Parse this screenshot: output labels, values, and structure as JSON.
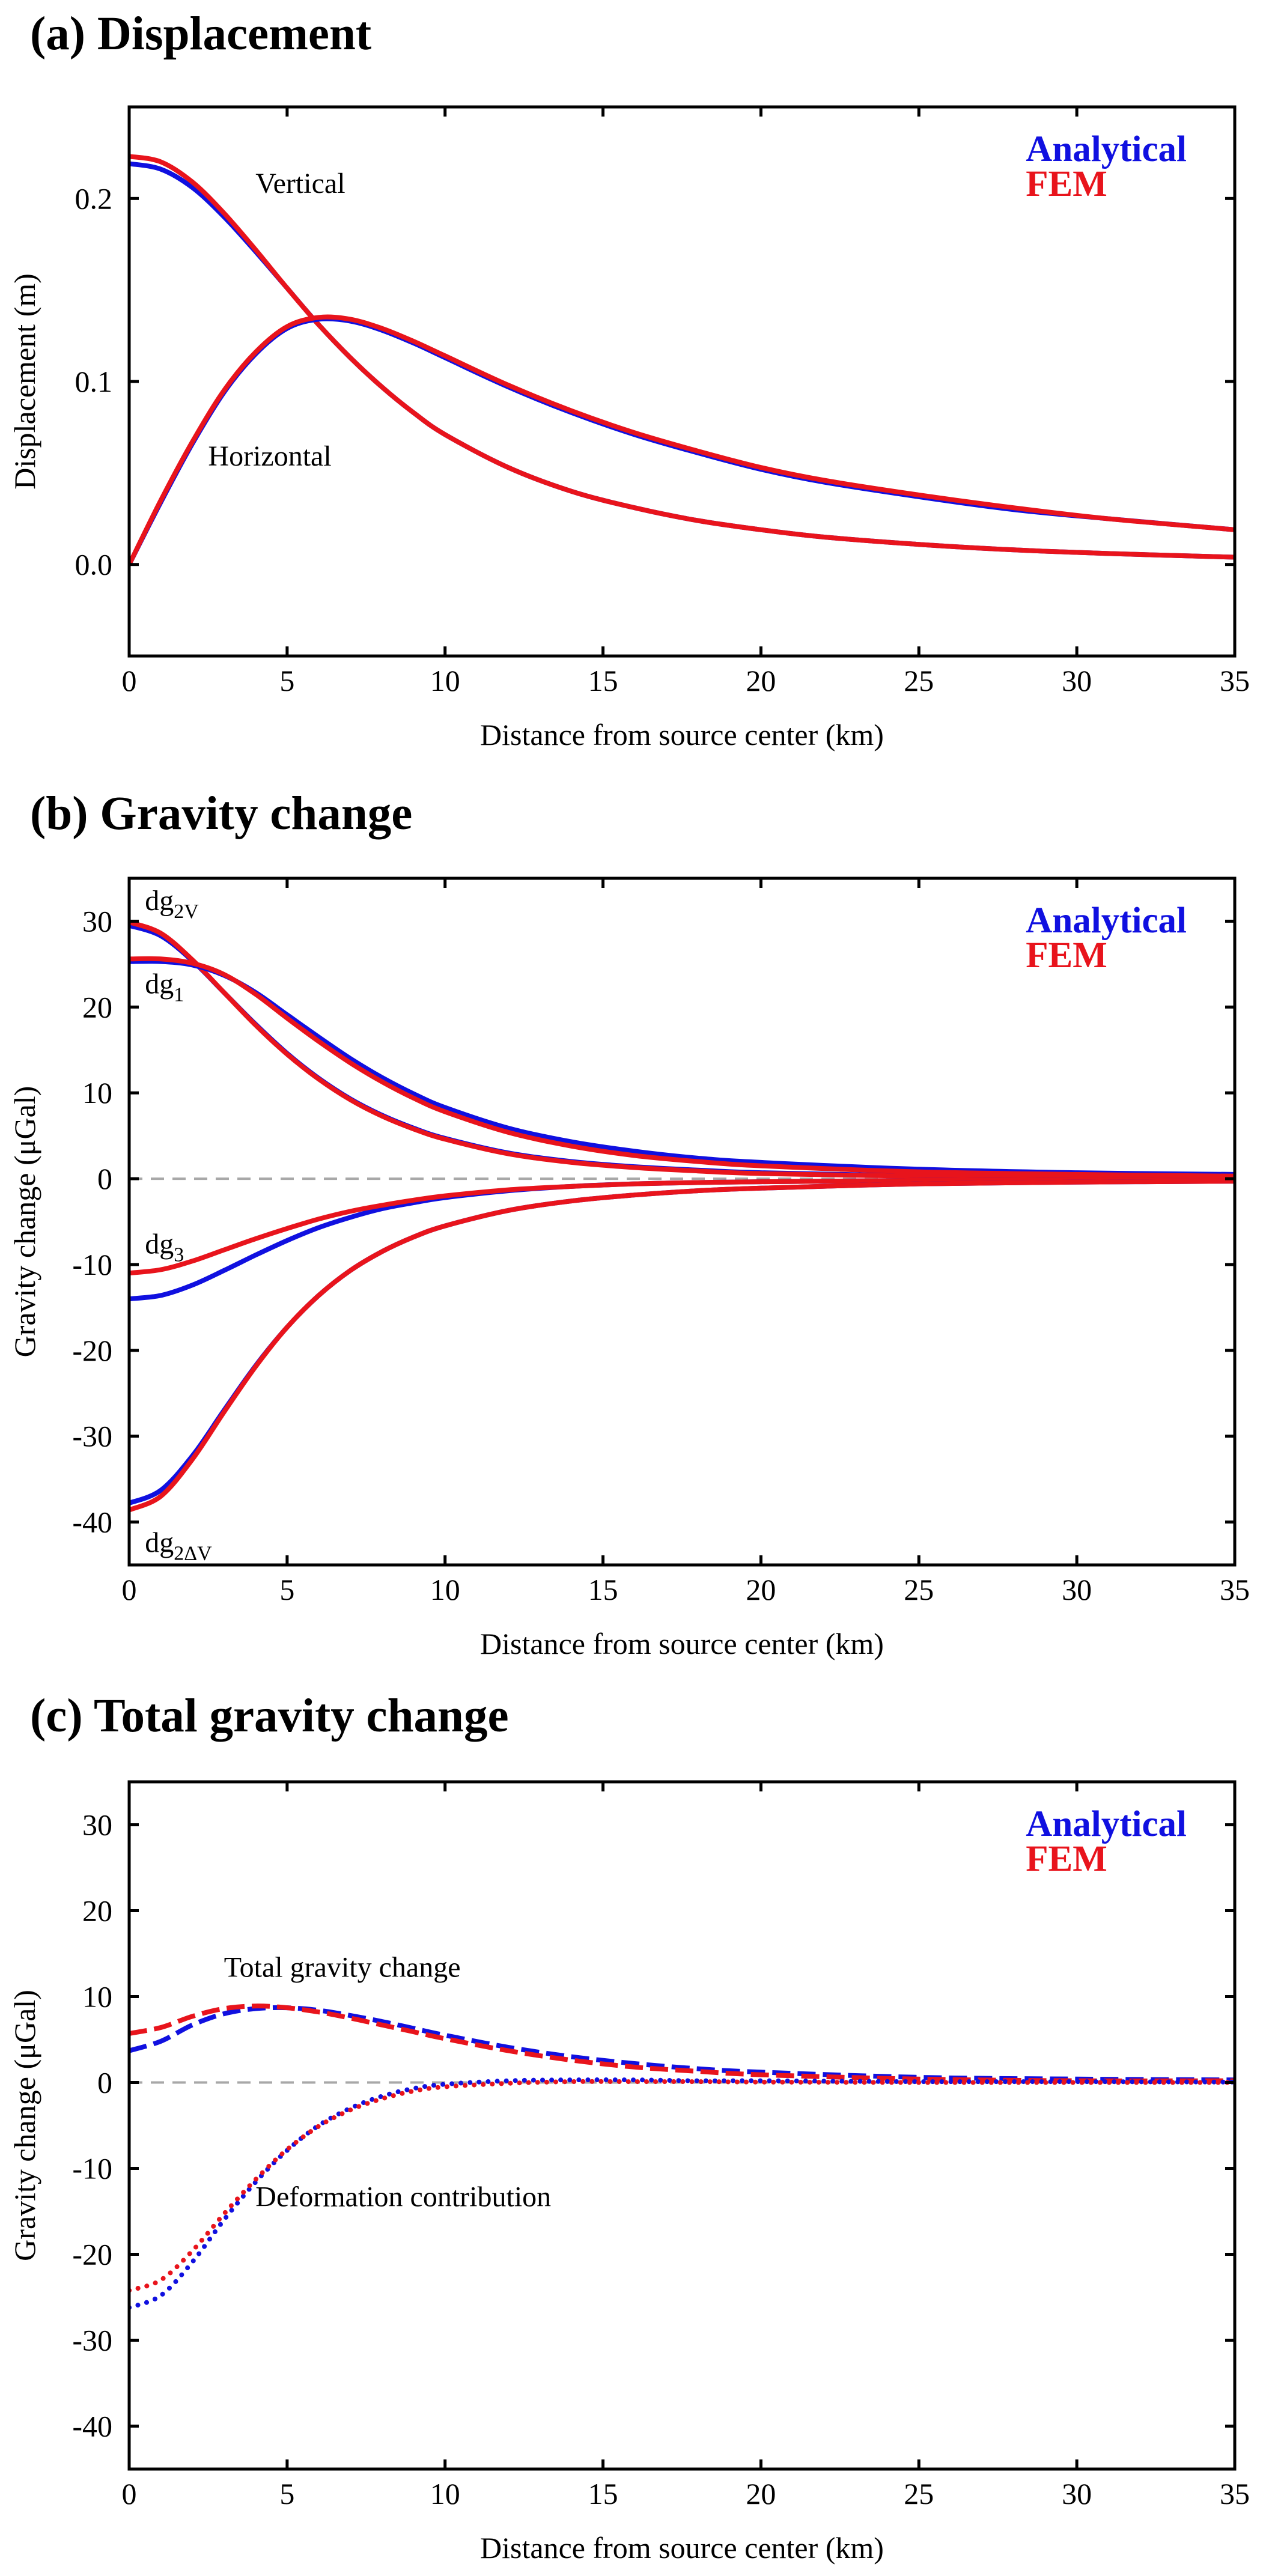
{
  "colors": {
    "analytical": "#1010e0",
    "fem": "#e8141c",
    "zero_line": "#a8a8a8"
  },
  "chart_data": [
    {
      "type": "line",
      "title": "(a) Displacement",
      "xlabel": "Distance from source center (km)",
      "ylabel": "Displacement (m)",
      "xlim": [
        0,
        35
      ],
      "ylim": [
        -0.05,
        0.25
      ],
      "xticks": [
        0,
        5,
        10,
        15,
        20,
        25,
        30,
        35
      ],
      "yticks": [
        0.0,
        0.1,
        0.2
      ],
      "xtick_labels": [
        "0",
        "5",
        "10",
        "15",
        "20",
        "25",
        "30",
        "35"
      ],
      "ytick_labels": [
        "0.0",
        "0.1",
        "0.2"
      ],
      "zero_line": false,
      "legend": {
        "placement": "top-right",
        "entries": [
          {
            "label": "Analytical",
            "color": "analytical"
          },
          {
            "label": "FEM",
            "color": "fem"
          }
        ]
      },
      "annotations": [
        {
          "text": "Vertical",
          "at": [
            4,
            0.203
          ]
        },
        {
          "text": "Horizontal",
          "at": [
            2.5,
            0.054
          ]
        }
      ],
      "series": [
        {
          "name": "Vertical (Analytical)",
          "color": "analytical",
          "style": "solid",
          "x": [
            0,
            1,
            2,
            3,
            4,
            5,
            6,
            7,
            8,
            9,
            10,
            12,
            14,
            16,
            18,
            20,
            22,
            25,
            28,
            31,
            35
          ],
          "y": [
            0.219,
            0.216,
            0.206,
            0.19,
            0.171,
            0.151,
            0.131,
            0.113,
            0.097,
            0.083,
            0.071,
            0.053,
            0.04,
            0.031,
            0.024,
            0.019,
            0.015,
            0.011,
            0.008,
            0.006,
            0.004
          ]
        },
        {
          "name": "Vertical (FEM)",
          "color": "fem",
          "style": "solid",
          "x": [
            0,
            1,
            2,
            3,
            4,
            5,
            6,
            7,
            8,
            9,
            10,
            12,
            14,
            16,
            18,
            20,
            22,
            25,
            28,
            31,
            35
          ],
          "y": [
            0.223,
            0.22,
            0.209,
            0.192,
            0.172,
            0.151,
            0.131,
            0.113,
            0.097,
            0.083,
            0.071,
            0.053,
            0.04,
            0.031,
            0.024,
            0.019,
            0.015,
            0.011,
            0.008,
            0.006,
            0.004
          ]
        },
        {
          "name": "Horizontal (Analytical)",
          "color": "analytical",
          "style": "solid",
          "x": [
            0,
            1,
            2,
            3,
            4,
            5,
            6,
            7,
            8,
            9,
            10,
            12,
            14,
            16,
            18,
            20,
            22,
            25,
            28,
            31,
            35
          ],
          "y": [
            0.0,
            0.034,
            0.066,
            0.094,
            0.115,
            0.129,
            0.134,
            0.133,
            0.128,
            0.121,
            0.113,
            0.097,
            0.083,
            0.071,
            0.061,
            0.052,
            0.045,
            0.037,
            0.03,
            0.025,
            0.019
          ]
        },
        {
          "name": "Horizontal (FEM)",
          "color": "fem",
          "style": "solid",
          "x": [
            0,
            1,
            2,
            3,
            4,
            5,
            6,
            7,
            8,
            9,
            10,
            12,
            14,
            16,
            18,
            20,
            22,
            25,
            28,
            31,
            35
          ],
          "y": [
            0.0,
            0.035,
            0.067,
            0.095,
            0.116,
            0.13,
            0.135,
            0.134,
            0.129,
            0.122,
            0.114,
            0.098,
            0.084,
            0.072,
            0.062,
            0.053,
            0.046,
            0.038,
            0.031,
            0.025,
            0.019
          ]
        }
      ]
    },
    {
      "type": "line",
      "title": "(b) Gravity change",
      "xlabel": "Distance from source center (km)",
      "ylabel": "Gravity change (μGal)",
      "xlim": [
        0,
        35
      ],
      "ylim": [
        -45,
        35
      ],
      "xticks": [
        0,
        5,
        10,
        15,
        20,
        25,
        30,
        35
      ],
      "yticks": [
        -40,
        -30,
        -20,
        -10,
        0,
        10,
        20,
        30
      ],
      "xtick_labels": [
        "0",
        "5",
        "10",
        "15",
        "20",
        "25",
        "30",
        "35"
      ],
      "ytick_labels": [
        "-40",
        "-30",
        "-20",
        "-10",
        "0",
        "10",
        "20",
        "30"
      ],
      "zero_line": true,
      "legend": {
        "placement": "top-right",
        "entries": [
          {
            "label": "Analytical",
            "color": "analytical"
          },
          {
            "label": "FEM",
            "color": "fem"
          }
        ]
      },
      "annotations": [
        {
          "text": "dg",
          "sub": "2V",
          "at": [
            0.5,
            31.3
          ]
        },
        {
          "text": "dg",
          "sub": "1",
          "at": [
            0.5,
            21.6
          ]
        },
        {
          "text": "dg",
          "sub": "3",
          "at": [
            0.5,
            -8.7
          ]
        },
        {
          "text": "dg",
          "sub": "2ΔV",
          "at": [
            0.5,
            -43.5
          ]
        }
      ],
      "series": [
        {
          "name": "dg2V (Analytical)",
          "color": "analytical",
          "style": "solid",
          "x": [
            0,
            1,
            2,
            3,
            4,
            5,
            6,
            7,
            8,
            9,
            10,
            12,
            14,
            16,
            18,
            20,
            25,
            30,
            35
          ],
          "y": [
            29.5,
            28.3,
            25.4,
            21.7,
            18.0,
            14.6,
            11.7,
            9.3,
            7.4,
            5.9,
            4.7,
            3.0,
            2.0,
            1.4,
            1.0,
            0.7,
            0.35,
            0.2,
            0.1
          ]
        },
        {
          "name": "dg2V (FEM)",
          "color": "fem",
          "style": "solid",
          "x": [
            0,
            1,
            2,
            3,
            4,
            5,
            6,
            7,
            8,
            9,
            10,
            12,
            14,
            16,
            18,
            20,
            25,
            30,
            35
          ],
          "y": [
            29.9,
            28.6,
            25.5,
            21.7,
            17.9,
            14.5,
            11.6,
            9.2,
            7.3,
            5.8,
            4.6,
            2.9,
            1.9,
            1.3,
            0.9,
            0.6,
            0.3,
            0.15,
            0.1
          ]
        },
        {
          "name": "dg1 (Analytical)",
          "color": "analytical",
          "style": "solid",
          "x": [
            0,
            1,
            2,
            3,
            4,
            5,
            6,
            7,
            8,
            9,
            10,
            12,
            14,
            16,
            18,
            20,
            25,
            30,
            35
          ],
          "y": [
            25.3,
            25.3,
            24.9,
            23.7,
            21.7,
            19.1,
            16.5,
            14.0,
            11.8,
            9.9,
            8.3,
            5.9,
            4.3,
            3.2,
            2.4,
            1.9,
            1.1,
            0.7,
            0.5
          ]
        },
        {
          "name": "dg1 (FEM)",
          "color": "fem",
          "style": "solid",
          "x": [
            0,
            1,
            2,
            3,
            4,
            5,
            6,
            7,
            8,
            9,
            10,
            12,
            14,
            16,
            18,
            20,
            25,
            30,
            35
          ],
          "y": [
            25.6,
            25.6,
            25.1,
            23.8,
            21.5,
            18.7,
            16.0,
            13.5,
            11.3,
            9.4,
            7.8,
            5.4,
            3.8,
            2.7,
            2.0,
            1.5,
            0.8,
            0.5,
            0.3
          ]
        },
        {
          "name": "dg3 (Analytical)",
          "color": "analytical",
          "style": "solid",
          "x": [
            0,
            1,
            2,
            3,
            4,
            5,
            6,
            7,
            8,
            9,
            10,
            12,
            14,
            16,
            18,
            20,
            25,
            30,
            35
          ],
          "y": [
            -14.0,
            -13.6,
            -12.4,
            -10.7,
            -8.9,
            -7.2,
            -5.7,
            -4.5,
            -3.5,
            -2.8,
            -2.2,
            -1.4,
            -0.9,
            -0.6,
            -0.45,
            -0.35,
            -0.2,
            -0.1,
            -0.1
          ]
        },
        {
          "name": "dg3 (FEM)",
          "color": "fem",
          "style": "solid",
          "x": [
            0,
            1,
            2,
            3,
            4,
            5,
            6,
            7,
            8,
            9,
            10,
            12,
            14,
            16,
            18,
            20,
            25,
            30,
            35
          ],
          "y": [
            -11.0,
            -10.6,
            -9.6,
            -8.3,
            -7.0,
            -5.8,
            -4.7,
            -3.8,
            -3.1,
            -2.5,
            -2.0,
            -1.3,
            -0.9,
            -0.6,
            -0.45,
            -0.35,
            -0.2,
            -0.1,
            -0.1
          ]
        },
        {
          "name": "dg2ΔV (Analytical)",
          "color": "analytical",
          "style": "solid",
          "x": [
            0,
            1,
            2,
            3,
            4,
            5,
            6,
            7,
            8,
            9,
            10,
            12,
            14,
            16,
            18,
            20,
            25,
            30,
            35
          ],
          "y": [
            -37.8,
            -36.3,
            -32.3,
            -27.0,
            -21.8,
            -17.3,
            -13.6,
            -10.7,
            -8.5,
            -6.8,
            -5.5,
            -3.7,
            -2.6,
            -1.9,
            -1.4,
            -1.1,
            -0.6,
            -0.4,
            -0.3
          ]
        },
        {
          "name": "dg2ΔV (FEM)",
          "color": "fem",
          "style": "solid",
          "x": [
            0,
            1,
            2,
            3,
            4,
            5,
            6,
            7,
            8,
            9,
            10,
            12,
            14,
            16,
            18,
            20,
            25,
            30,
            35
          ],
          "y": [
            -38.6,
            -37.0,
            -32.7,
            -27.2,
            -21.9,
            -17.3,
            -13.6,
            -10.7,
            -8.5,
            -6.8,
            -5.5,
            -3.7,
            -2.6,
            -1.9,
            -1.4,
            -1.1,
            -0.6,
            -0.4,
            -0.3
          ]
        }
      ]
    },
    {
      "type": "line",
      "title": "(c) Total gravity change",
      "xlabel": "Distance from source center (km)",
      "ylabel": "Gravity change (μGal)",
      "xlim": [
        0,
        35
      ],
      "ylim": [
        -45,
        35
      ],
      "xticks": [
        0,
        5,
        10,
        15,
        20,
        25,
        30,
        35
      ],
      "yticks": [
        -40,
        -30,
        -20,
        -10,
        0,
        10,
        20,
        30
      ],
      "xtick_labels": [
        "0",
        "5",
        "10",
        "15",
        "20",
        "25",
        "30",
        "35"
      ],
      "ytick_labels": [
        "-40",
        "-30",
        "-20",
        "-10",
        "0",
        "10",
        "20",
        "30"
      ],
      "zero_line": true,
      "legend": {
        "placement": "top-right",
        "entries": [
          {
            "label": "Analytical",
            "color": "analytical"
          },
          {
            "label": "FEM",
            "color": "fem"
          }
        ]
      },
      "annotations": [
        {
          "text": "Total gravity change",
          "at": [
            3,
            12.3
          ]
        },
        {
          "text": "Deformation contribution",
          "at": [
            4,
            -14.4
          ]
        }
      ],
      "series": [
        {
          "name": "Total gravity change (Analytical)",
          "color": "analytical",
          "style": "dashed",
          "x": [
            0,
            1,
            2,
            3,
            4,
            5,
            6,
            7,
            8,
            9,
            10,
            12,
            14,
            16,
            18,
            20,
            25,
            30,
            35
          ],
          "y": [
            3.7,
            4.8,
            6.7,
            8.0,
            8.6,
            8.7,
            8.4,
            7.8,
            7.1,
            6.3,
            5.5,
            4.1,
            3.0,
            2.2,
            1.6,
            1.2,
            0.6,
            0.4,
            0.3
          ]
        },
        {
          "name": "Total gravity change (FEM)",
          "color": "fem",
          "style": "dashed",
          "x": [
            0,
            1,
            2,
            3,
            4,
            5,
            6,
            7,
            8,
            9,
            10,
            12,
            14,
            16,
            18,
            20,
            25,
            30,
            35
          ],
          "y": [
            5.7,
            6.4,
            7.7,
            8.6,
            8.9,
            8.7,
            8.2,
            7.5,
            6.7,
            5.9,
            5.1,
            3.7,
            2.6,
            1.8,
            1.3,
            0.9,
            0.4,
            0.2,
            0.2
          ]
        },
        {
          "name": "Deformation contribution (Analytical)",
          "color": "analytical",
          "style": "dotted",
          "x": [
            0,
            1,
            2,
            3,
            4,
            5,
            6,
            7,
            8,
            9,
            10,
            12,
            14,
            16,
            18,
            20,
            25,
            30,
            35
          ],
          "y": [
            -26.2,
            -24.8,
            -20.9,
            -16.0,
            -11.6,
            -7.9,
            -5.0,
            -3.0,
            -1.6,
            -0.7,
            -0.2,
            0.2,
            0.3,
            0.3,
            0.2,
            0.2,
            0.1,
            0.1,
            0.05
          ]
        },
        {
          "name": "Deformation contribution (FEM)",
          "color": "fem",
          "style": "dotted",
          "x": [
            0,
            1,
            2,
            3,
            4,
            5,
            6,
            7,
            8,
            9,
            10,
            12,
            14,
            16,
            18,
            20,
            25,
            30,
            35
          ],
          "y": [
            -24.2,
            -23.0,
            -19.6,
            -15.3,
            -11.3,
            -7.8,
            -5.1,
            -3.2,
            -1.9,
            -1.0,
            -0.5,
            -0.1,
            0.1,
            0.1,
            0.1,
            0.05,
            0.0,
            0.0,
            0.0
          ]
        }
      ]
    }
  ]
}
